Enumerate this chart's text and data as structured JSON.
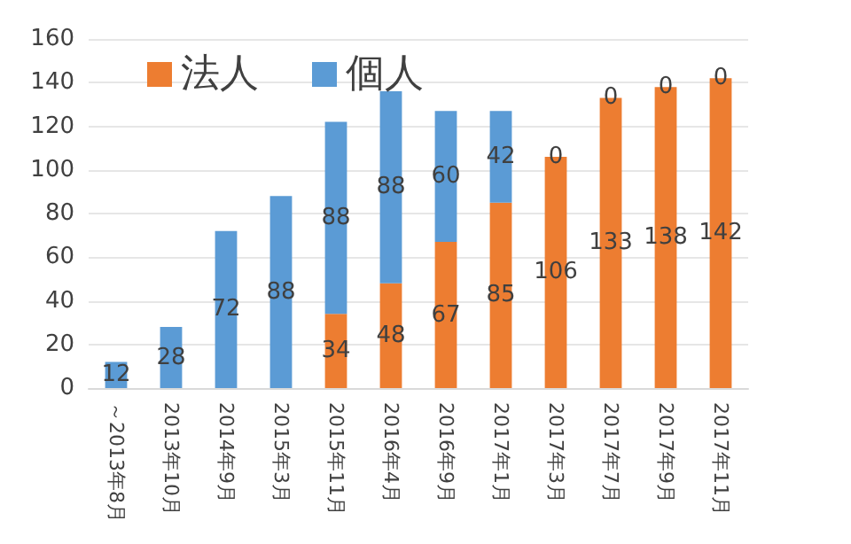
{
  "chart_data": {
    "type": "bar",
    "stacked": true,
    "categories": [
      "～2013年8月",
      "2013年10月",
      "2014年9月",
      "2015年3月",
      "2015年11月",
      "2016年4月",
      "2016年9月",
      "2017年1月",
      "2017年3月",
      "2017年7月",
      "2017年9月",
      "2017年11月"
    ],
    "series": [
      {
        "name": "法人",
        "color": "#ed7d31",
        "values": [
          0,
          0,
          0,
          0,
          34,
          48,
          67,
          85,
          106,
          133,
          138,
          142
        ],
        "value_labels": [
          null,
          null,
          null,
          null,
          "34",
          "48",
          "67",
          "85",
          "106",
          "133",
          "138",
          "142"
        ]
      },
      {
        "name": "個人",
        "color": "#5b9bd5",
        "values": [
          12,
          28,
          72,
          88,
          88,
          88,
          60,
          42,
          0,
          0,
          0,
          0
        ],
        "value_labels": [
          "12",
          "28",
          "72",
          "88",
          "88",
          "88",
          "60",
          "42",
          "0",
          "0",
          "0",
          "0"
        ]
      }
    ],
    "ylim": [
      0,
      160
    ],
    "yticks": [
      0,
      20,
      40,
      60,
      80,
      100,
      120,
      140,
      160
    ],
    "grid": "y",
    "legend": "top left"
  }
}
